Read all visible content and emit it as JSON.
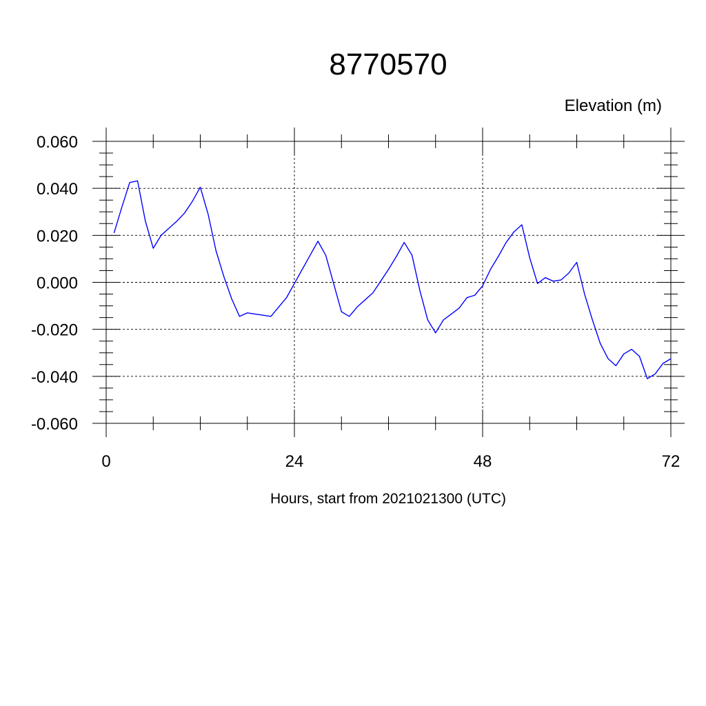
{
  "chart_data": {
    "type": "line",
    "title": "8770570",
    "subtitle": "Elevation (m)",
    "xlabel": "Hours, start from 2021021300 (UTC)",
    "ylabel": "",
    "xlim": [
      0,
      72
    ],
    "ylim": [
      -0.06,
      0.06
    ],
    "x_ticks": [
      0,
      24,
      48,
      72
    ],
    "x_tick_labels": [
      "0",
      "24",
      "48",
      "72"
    ],
    "x_minor_step": 6,
    "y_ticks": [
      -0.06,
      -0.04,
      -0.02,
      0.0,
      0.02,
      0.04,
      0.06
    ],
    "y_tick_labels": [
      "-0.060",
      "-0.040",
      "-0.020",
      "0.000",
      "0.020",
      "0.040",
      "0.060"
    ],
    "y_minor_step": 0.005,
    "grid": true,
    "line_color": "#0000ff",
    "series": [
      {
        "x": [
          1,
          2,
          3,
          4,
          5,
          6,
          7,
          8,
          9,
          10,
          11,
          12,
          13,
          14,
          15,
          16,
          17,
          18,
          19,
          20,
          21,
          22,
          23,
          24,
          25,
          26,
          27,
          28,
          29,
          30,
          31,
          32,
          33,
          34,
          35,
          36,
          37,
          38,
          39,
          40,
          41,
          42,
          43,
          44,
          45,
          46,
          47,
          48,
          49,
          50,
          51,
          52,
          53,
          54,
          55,
          56,
          57,
          58,
          59,
          60,
          61,
          62,
          63,
          64,
          65,
          66,
          67,
          68,
          69,
          70,
          71,
          72
        ],
        "values": [
          0.021,
          0.032,
          0.0425,
          0.0432,
          0.026,
          0.0145,
          0.02,
          0.023,
          0.026,
          0.0295,
          0.0345,
          0.0405,
          0.029,
          0.0135,
          0.0025,
          -0.007,
          -0.0145,
          -0.013,
          -0.0135,
          -0.014,
          -0.0145,
          -0.0105,
          -0.0065,
          -0.0005,
          0.0055,
          0.0115,
          0.0175,
          0.0115,
          -0.0005,
          -0.0125,
          -0.0145,
          -0.0105,
          -0.0075,
          -0.0045,
          0.0005,
          0.0055,
          0.011,
          0.017,
          0.0115,
          -0.0035,
          -0.016,
          -0.0215,
          -0.016,
          -0.0135,
          -0.011,
          -0.0065,
          -0.0055,
          -0.0015,
          0.0055,
          0.011,
          0.017,
          0.0215,
          0.0245,
          0.0105,
          -0.0005,
          0.002,
          0.0005,
          0.001,
          0.004,
          0.0085,
          -0.005,
          -0.016,
          -0.026,
          -0.0325,
          -0.0355,
          -0.0305,
          -0.0285,
          -0.0315,
          -0.041,
          -0.039,
          -0.0345,
          -0.0325
        ]
      }
    ]
  }
}
